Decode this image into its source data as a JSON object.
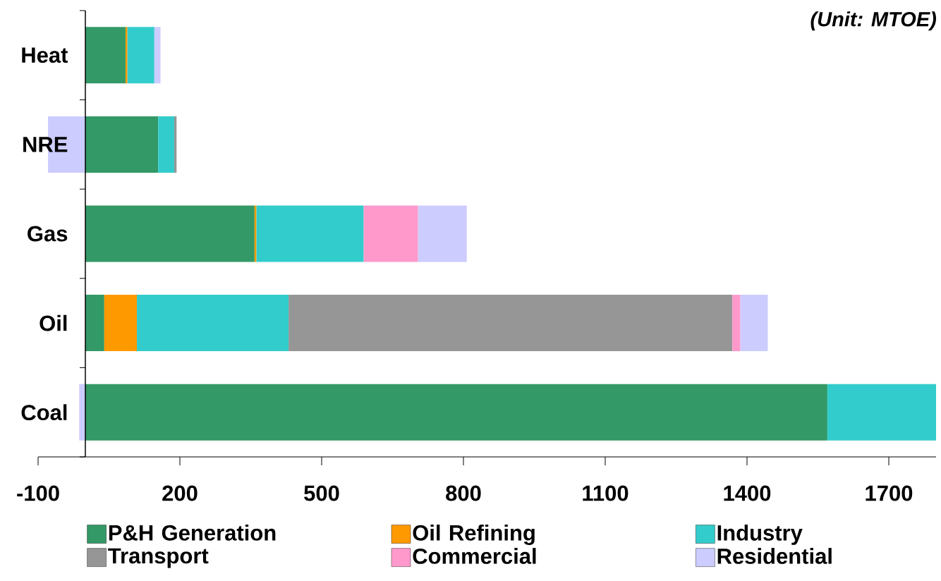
{
  "chart_data": {
    "type": "bar",
    "orientation": "horizontal",
    "stacked": true,
    "categories": [
      "Heat",
      "NRE",
      "Gas",
      "Oil",
      "Coal"
    ],
    "series": [
      {
        "name": "P&H Generation",
        "color": "#339966",
        "values": [
          85,
          154,
          358,
          40,
          1570
        ]
      },
      {
        "name": "Oil Refining",
        "color": "#ff9900",
        "values": [
          4,
          null,
          4,
          69,
          null
        ]
      },
      {
        "name": "Industry",
        "color": "#33cccc",
        "values": [
          57,
          34,
          227,
          321,
          230
        ]
      },
      {
        "name": "Transport",
        "color": "#969696",
        "values": [
          null,
          5,
          null,
          939,
          null
        ]
      },
      {
        "name": "Commercial",
        "color": "#ff99cc",
        "values": [
          null,
          null,
          115,
          17,
          null
        ]
      },
      {
        "name": "Residential",
        "color": "#ccccff",
        "values": [
          13,
          -79,
          103,
          58,
          -13
        ]
      }
    ],
    "xlim": [
      -100,
      1800
    ],
    "xticks": [
      -100,
      200,
      500,
      800,
      1100,
      1400,
      1700
    ],
    "grid": false,
    "legend": "bottom",
    "annotations": [
      "(Unit: MTOE)"
    ]
  }
}
